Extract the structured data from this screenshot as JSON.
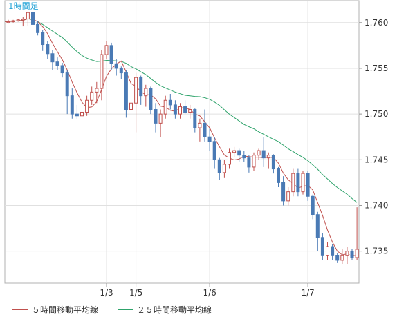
{
  "chart_data": {
    "type": "candlestick",
    "timeframe_label": "1時間足",
    "ylim": [
      1.7315,
      1.7624
    ],
    "y_ticks": [
      "1.760",
      "1.755",
      "1.750",
      "1.745",
      "1.740",
      "1.735"
    ],
    "y_tick_values": [
      1.76,
      1.755,
      1.75,
      1.745,
      1.74,
      1.735
    ],
    "x_tick_labels": [
      {
        "label": "1/3",
        "index": 20
      },
      {
        "label": "1/5",
        "index": 26
      },
      {
        "label": "1/6",
        "index": 41
      },
      {
        "label": "1/7",
        "index": 61
      }
    ],
    "candles": [
      [
        1.76,
        1.7603,
        1.7599,
        1.7601
      ],
      [
        1.7601,
        1.7603,
        1.76,
        1.7602
      ],
      [
        1.7602,
        1.7604,
        1.7601,
        1.7603
      ],
      [
        1.7603,
        1.7606,
        1.7596,
        1.7604
      ],
      [
        1.7604,
        1.7612,
        1.7596,
        1.7611
      ],
      [
        1.7611,
        1.7612,
        1.7588,
        1.7598
      ],
      [
        1.7598,
        1.7602,
        1.7586,
        1.7589
      ],
      [
        1.7589,
        1.7592,
        1.7569,
        1.7576
      ],
      [
        1.7576,
        1.758,
        1.756,
        1.7566
      ],
      [
        1.7566,
        1.757,
        1.7548,
        1.7557
      ],
      [
        1.7557,
        1.7562,
        1.7548,
        1.7553
      ],
      [
        1.7553,
        1.7556,
        1.754,
        1.7545
      ],
      [
        1.7545,
        1.7548,
        1.75,
        1.752
      ],
      [
        1.752,
        1.7528,
        1.7495,
        1.75
      ],
      [
        1.75,
        1.751,
        1.7494,
        1.7498
      ],
      [
        1.7498,
        1.7507,
        1.749,
        1.7502
      ],
      [
        1.7502,
        1.752,
        1.7498,
        1.7515
      ],
      [
        1.7515,
        1.753,
        1.751,
        1.7524
      ],
      [
        1.7524,
        1.7535,
        1.7512,
        1.7528
      ],
      [
        1.7528,
        1.757,
        1.7515,
        1.7565
      ],
      [
        1.7565,
        1.758,
        1.756,
        1.7575
      ],
      [
        1.7575,
        1.7578,
        1.7548,
        1.7555
      ],
      [
        1.7555,
        1.756,
        1.7542,
        1.755
      ],
      [
        1.755,
        1.7552,
        1.7538,
        1.7545
      ],
      [
        1.7545,
        1.7548,
        1.7496,
        1.7505
      ],
      [
        1.7505,
        1.7515,
        1.7498,
        1.7512
      ],
      [
        1.7512,
        1.7545,
        1.748,
        1.754
      ],
      [
        1.754,
        1.7542,
        1.751,
        1.752
      ],
      [
        1.752,
        1.7532,
        1.7508,
        1.7528
      ],
      [
        1.7528,
        1.753,
        1.75,
        1.7505
      ],
      [
        1.7505,
        1.7512,
        1.748,
        1.749
      ],
      [
        1.749,
        1.7505,
        1.7475,
        1.75
      ],
      [
        1.75,
        1.752,
        1.7495,
        1.7515
      ],
      [
        1.7515,
        1.7522,
        1.7505,
        1.751
      ],
      [
        1.751,
        1.7515,
        1.7495,
        1.75
      ],
      [
        1.75,
        1.7512,
        1.7495,
        1.7508
      ],
      [
        1.7508,
        1.7515,
        1.75,
        1.7502
      ],
      [
        1.7502,
        1.751,
        1.7495,
        1.7505
      ],
      [
        1.7505,
        1.7506,
        1.748,
        1.7485
      ],
      [
        1.7485,
        1.7495,
        1.747,
        1.749
      ],
      [
        1.749,
        1.7505,
        1.747,
        1.7475
      ],
      [
        1.7475,
        1.7485,
        1.746,
        1.747
      ],
      [
        1.747,
        1.7475,
        1.744,
        1.745
      ],
      [
        1.745,
        1.7452,
        1.7428,
        1.7436
      ],
      [
        1.7436,
        1.745,
        1.743,
        1.7445
      ],
      [
        1.7445,
        1.7462,
        1.744,
        1.7458
      ],
      [
        1.7458,
        1.7464,
        1.7453,
        1.746
      ],
      [
        1.746,
        1.7462,
        1.7448,
        1.7455
      ],
      [
        1.7455,
        1.746,
        1.7448,
        1.7452
      ],
      [
        1.7452,
        1.7455,
        1.7436,
        1.7442
      ],
      [
        1.7442,
        1.7458,
        1.7438,
        1.7455
      ],
      [
        1.7455,
        1.7462,
        1.745,
        1.746
      ],
      [
        1.746,
        1.7475,
        1.7442,
        1.7452
      ],
      [
        1.7452,
        1.7458,
        1.744,
        1.7455
      ],
      [
        1.7455,
        1.7456,
        1.7435,
        1.744
      ],
      [
        1.744,
        1.7442,
        1.742,
        1.7425
      ],
      [
        1.7425,
        1.7432,
        1.74,
        1.7405
      ],
      [
        1.7405,
        1.742,
        1.74,
        1.7415
      ],
      [
        1.7415,
        1.744,
        1.741,
        1.7435
      ],
      [
        1.7435,
        1.744,
        1.741,
        1.7415
      ],
      [
        1.7415,
        1.7438,
        1.7412,
        1.7435
      ],
      [
        1.7435,
        1.7438,
        1.7405,
        1.741
      ],
      [
        1.741,
        1.7412,
        1.7385,
        1.739
      ],
      [
        1.739,
        1.7393,
        1.735,
        1.7365
      ],
      [
        1.7365,
        1.737,
        1.734,
        1.7345
      ],
      [
        1.7345,
        1.736,
        1.734,
        1.7355
      ],
      [
        1.7355,
        1.7358,
        1.734,
        1.7345
      ],
      [
        1.7345,
        1.7348,
        1.7337,
        1.734
      ],
      [
        1.734,
        1.7352,
        1.7336,
        1.7345
      ],
      [
        1.7345,
        1.7355,
        1.7336,
        1.735
      ],
      [
        1.735,
        1.7352,
        1.734,
        1.7343
      ],
      [
        1.7343,
        1.7398,
        1.734,
        1.7352
      ]
    ],
    "legend": [
      {
        "label": "５時間移動平均線",
        "color": "#c0504d"
      },
      {
        "label": "２５時間移動平均線",
        "color": "#2ea36b"
      }
    ],
    "grid": true,
    "colors": {
      "up": "#c0504d",
      "down": "#4a7ab5",
      "ma5": "#c0504d",
      "ma25": "#2ea36b",
      "grid": "#e0e0e0"
    }
  }
}
